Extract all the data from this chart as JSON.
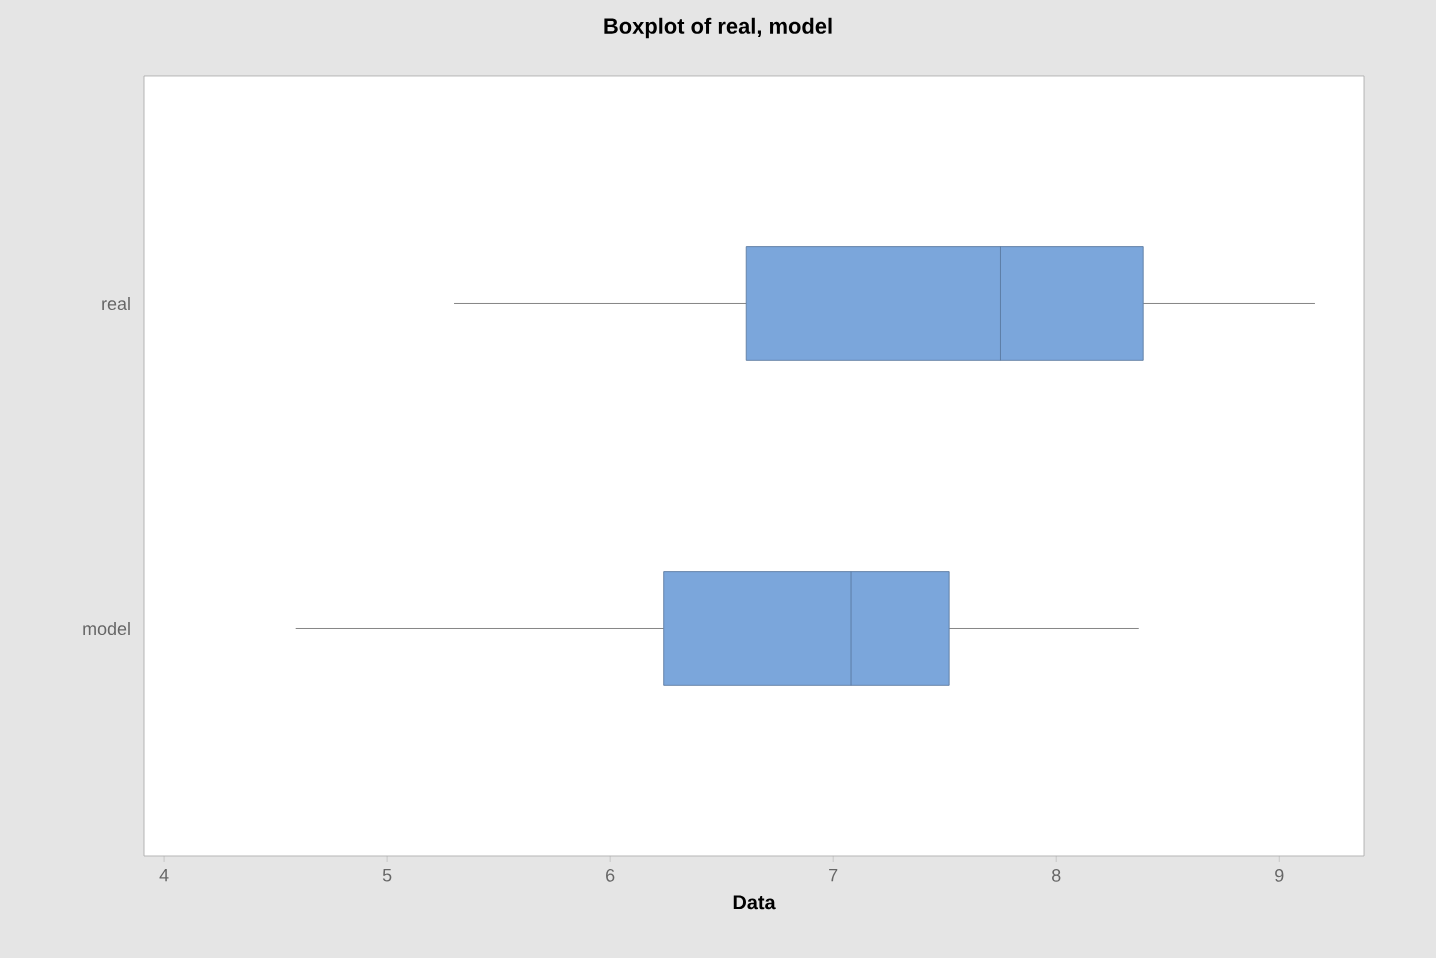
{
  "chart_data": {
    "type": "box",
    "title": "Boxplot of real, model",
    "xlabel": "Data",
    "orientation": "horizontal",
    "categories": [
      "real",
      "model"
    ],
    "color": "#7ba6db",
    "boxes": [
      {
        "low": 5.3,
        "q1": 6.61,
        "median": 7.75,
        "q3": 8.39,
        "high": 9.16
      },
      {
        "low": 4.59,
        "q1": 6.24,
        "median": 7.08,
        "q3": 7.52,
        "high": 8.37
      }
    ],
    "xlim": [
      3.91,
      9.38
    ],
    "xticks": [
      4,
      5,
      6,
      7,
      8,
      9
    ],
    "grid": false
  }
}
